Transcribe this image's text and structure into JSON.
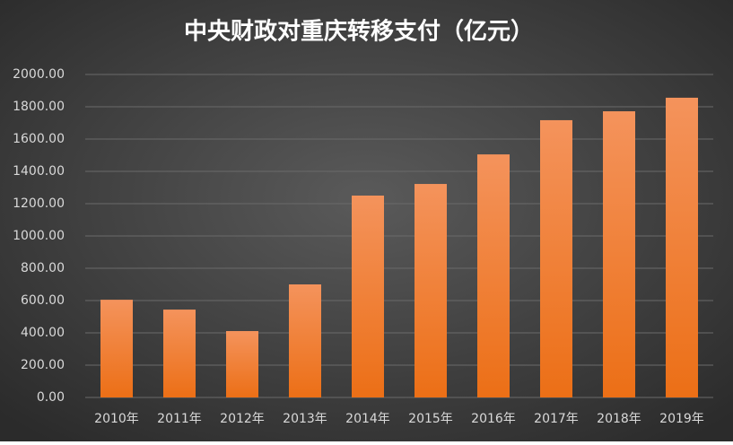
{
  "chart_data": {
    "type": "bar",
    "title": "中央财政对重庆转移支付（亿元）",
    "categories": [
      "2010年",
      "2011年",
      "2012年",
      "2013年",
      "2014年",
      "2015年",
      "2016年",
      "2017年",
      "2018年",
      "2019年"
    ],
    "values": [
      605,
      544,
      411,
      700,
      1250,
      1322,
      1505,
      1717,
      1772,
      1856
    ],
    "color": "#ee7a2a",
    "ylim": [
      0,
      2000
    ],
    "yticks": [
      {
        "value": 0,
        "label": "0.00"
      },
      {
        "value": 200,
        "label": "200.00"
      },
      {
        "value": 400,
        "label": "400.00"
      },
      {
        "value": 600,
        "label": "600.00"
      },
      {
        "value": 800,
        "label": "800.00"
      },
      {
        "value": 1000,
        "label": "1000.00"
      },
      {
        "value": 1200,
        "label": "1200.00"
      },
      {
        "value": 1400,
        "label": "1400.00"
      },
      {
        "value": 1600,
        "label": "1600.00"
      },
      {
        "value": 1800,
        "label": "1800.00"
      },
      {
        "value": 2000,
        "label": "2000.00"
      }
    ],
    "grid": true
  }
}
